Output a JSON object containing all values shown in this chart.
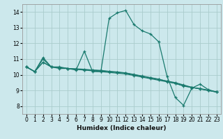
{
  "xlabel": "Humidex (Indice chaleur)",
  "bg_color": "#cce8ec",
  "grid_color": "#aacccc",
  "line_color": "#1a7a6e",
  "xlim": [
    -0.5,
    23.5
  ],
  "ylim": [
    7.5,
    14.5
  ],
  "xticks": [
    0,
    1,
    2,
    3,
    4,
    5,
    6,
    7,
    8,
    9,
    10,
    11,
    12,
    13,
    14,
    15,
    16,
    17,
    18,
    19,
    20,
    21,
    22,
    23
  ],
  "yticks": [
    8,
    9,
    10,
    11,
    12,
    13,
    14
  ],
  "lines": [
    {
      "x": [
        0,
        1,
        2,
        3,
        4,
        5,
        6,
        7,
        8,
        9,
        10,
        11,
        12,
        13,
        14,
        15,
        16,
        17,
        18,
        19,
        20,
        21,
        22,
        23
      ],
      "y": [
        10.5,
        10.2,
        11.1,
        10.5,
        10.5,
        10.4,
        10.3,
        11.5,
        10.2,
        10.2,
        13.6,
        13.95,
        14.1,
        13.2,
        12.8,
        12.6,
        12.1,
        9.9,
        8.55,
        8.05,
        9.15,
        9.4,
        9.05,
        8.9
      ]
    },
    {
      "x": [
        0,
        1,
        2,
        3,
        4,
        5,
        6,
        7,
        8,
        9,
        10,
        11,
        12,
        13,
        14,
        15,
        16,
        17,
        18,
        19,
        20,
        21,
        22,
        23
      ],
      "y": [
        10.5,
        10.2,
        11.0,
        10.5,
        10.4,
        10.4,
        10.35,
        10.3,
        10.25,
        10.2,
        10.15,
        10.1,
        10.05,
        9.95,
        9.85,
        9.75,
        9.65,
        9.55,
        9.45,
        9.3,
        9.2,
        9.1,
        9.0,
        8.9
      ]
    },
    {
      "x": [
        0,
        1,
        2,
        3,
        4,
        5,
        6,
        7,
        8,
        9,
        10,
        11,
        12,
        13,
        14,
        15,
        16,
        17,
        18,
        19,
        20,
        21,
        22,
        23
      ],
      "y": [
        10.5,
        10.2,
        10.8,
        10.5,
        10.45,
        10.4,
        10.35,
        10.3,
        10.3,
        10.25,
        10.2,
        10.15,
        10.1,
        10.0,
        9.9,
        9.8,
        9.7,
        9.6,
        9.5,
        9.35,
        9.2,
        9.1,
        9.0,
        8.9
      ]
    },
    {
      "x": [
        0,
        1,
        2,
        3,
        4,
        5,
        6,
        7,
        8,
        9,
        10,
        11,
        12,
        13,
        14,
        15,
        16,
        17,
        18,
        19,
        20,
        21,
        22,
        23
      ],
      "y": [
        10.5,
        10.2,
        10.8,
        10.5,
        10.45,
        10.4,
        10.38,
        10.35,
        10.3,
        10.28,
        10.22,
        10.18,
        10.12,
        10.02,
        9.92,
        9.82,
        9.72,
        9.58,
        9.45,
        9.28,
        9.18,
        9.12,
        9.02,
        8.9
      ]
    }
  ]
}
